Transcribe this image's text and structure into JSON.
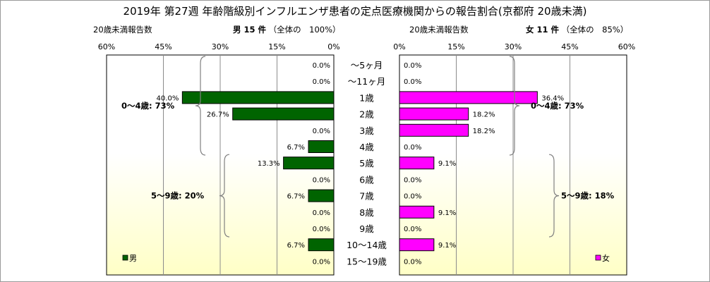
{
  "title": "2019年 第27週 年齢階級別インフルエンザ患者の定点医療機関からの報告割合(京都府 20歳未満)",
  "left_axis_title": "20歳未満報告数",
  "right_axis_title": "20歳未満報告数",
  "male_header": {
    "label": "男 15 件",
    "detail": "（全体の　100%）"
  },
  "female_header": {
    "label": "女 11 件",
    "detail": "（全体の　85%）"
  },
  "colors": {
    "male": "#006400",
    "female": "#ff00ff",
    "plot_bg_top": "#ffffff",
    "plot_bg_bottom": "#ffffc6"
  },
  "chart_data": {
    "type": "bar",
    "orientation": "horizontal-butterfly",
    "categories": [
      "～5ヶ月",
      "～11ヶ月",
      "1歳",
      "2歳",
      "3歳",
      "4歳",
      "5歳",
      "6歳",
      "7歳",
      "8歳",
      "9歳",
      "10～14歳",
      "15～19歳"
    ],
    "series": [
      {
        "name": "男",
        "values": [
          0.0,
          0.0,
          40.0,
          26.7,
          0.0,
          6.7,
          13.3,
          0.0,
          6.7,
          0.0,
          0.0,
          6.7,
          0.0
        ]
      },
      {
        "name": "女",
        "values": [
          0.0,
          0.0,
          36.4,
          18.2,
          18.2,
          0.0,
          9.1,
          0.0,
          0.0,
          9.1,
          0.0,
          9.1,
          0.0
        ]
      }
    ],
    "xlim": [
      0,
      60
    ],
    "ticks": [
      0,
      15,
      30,
      45,
      60
    ],
    "tick_labels": [
      "0%",
      "15%",
      "30%",
      "45%",
      "60%"
    ],
    "grid": true,
    "legend_position": "bottom-left / bottom-right",
    "annotations": {
      "male": [
        {
          "label": "0～4歳: 73%",
          "from_category": 0,
          "to_category": 5
        },
        {
          "label": "5～9歳: 20%",
          "from_category": 6,
          "to_category": 10
        }
      ],
      "female": [
        {
          "label": "0～4歳: 73%",
          "from_category": 0,
          "to_category": 5
        },
        {
          "label": "5～9歳: 18%",
          "from_category": 6,
          "to_category": 10
        }
      ]
    }
  }
}
